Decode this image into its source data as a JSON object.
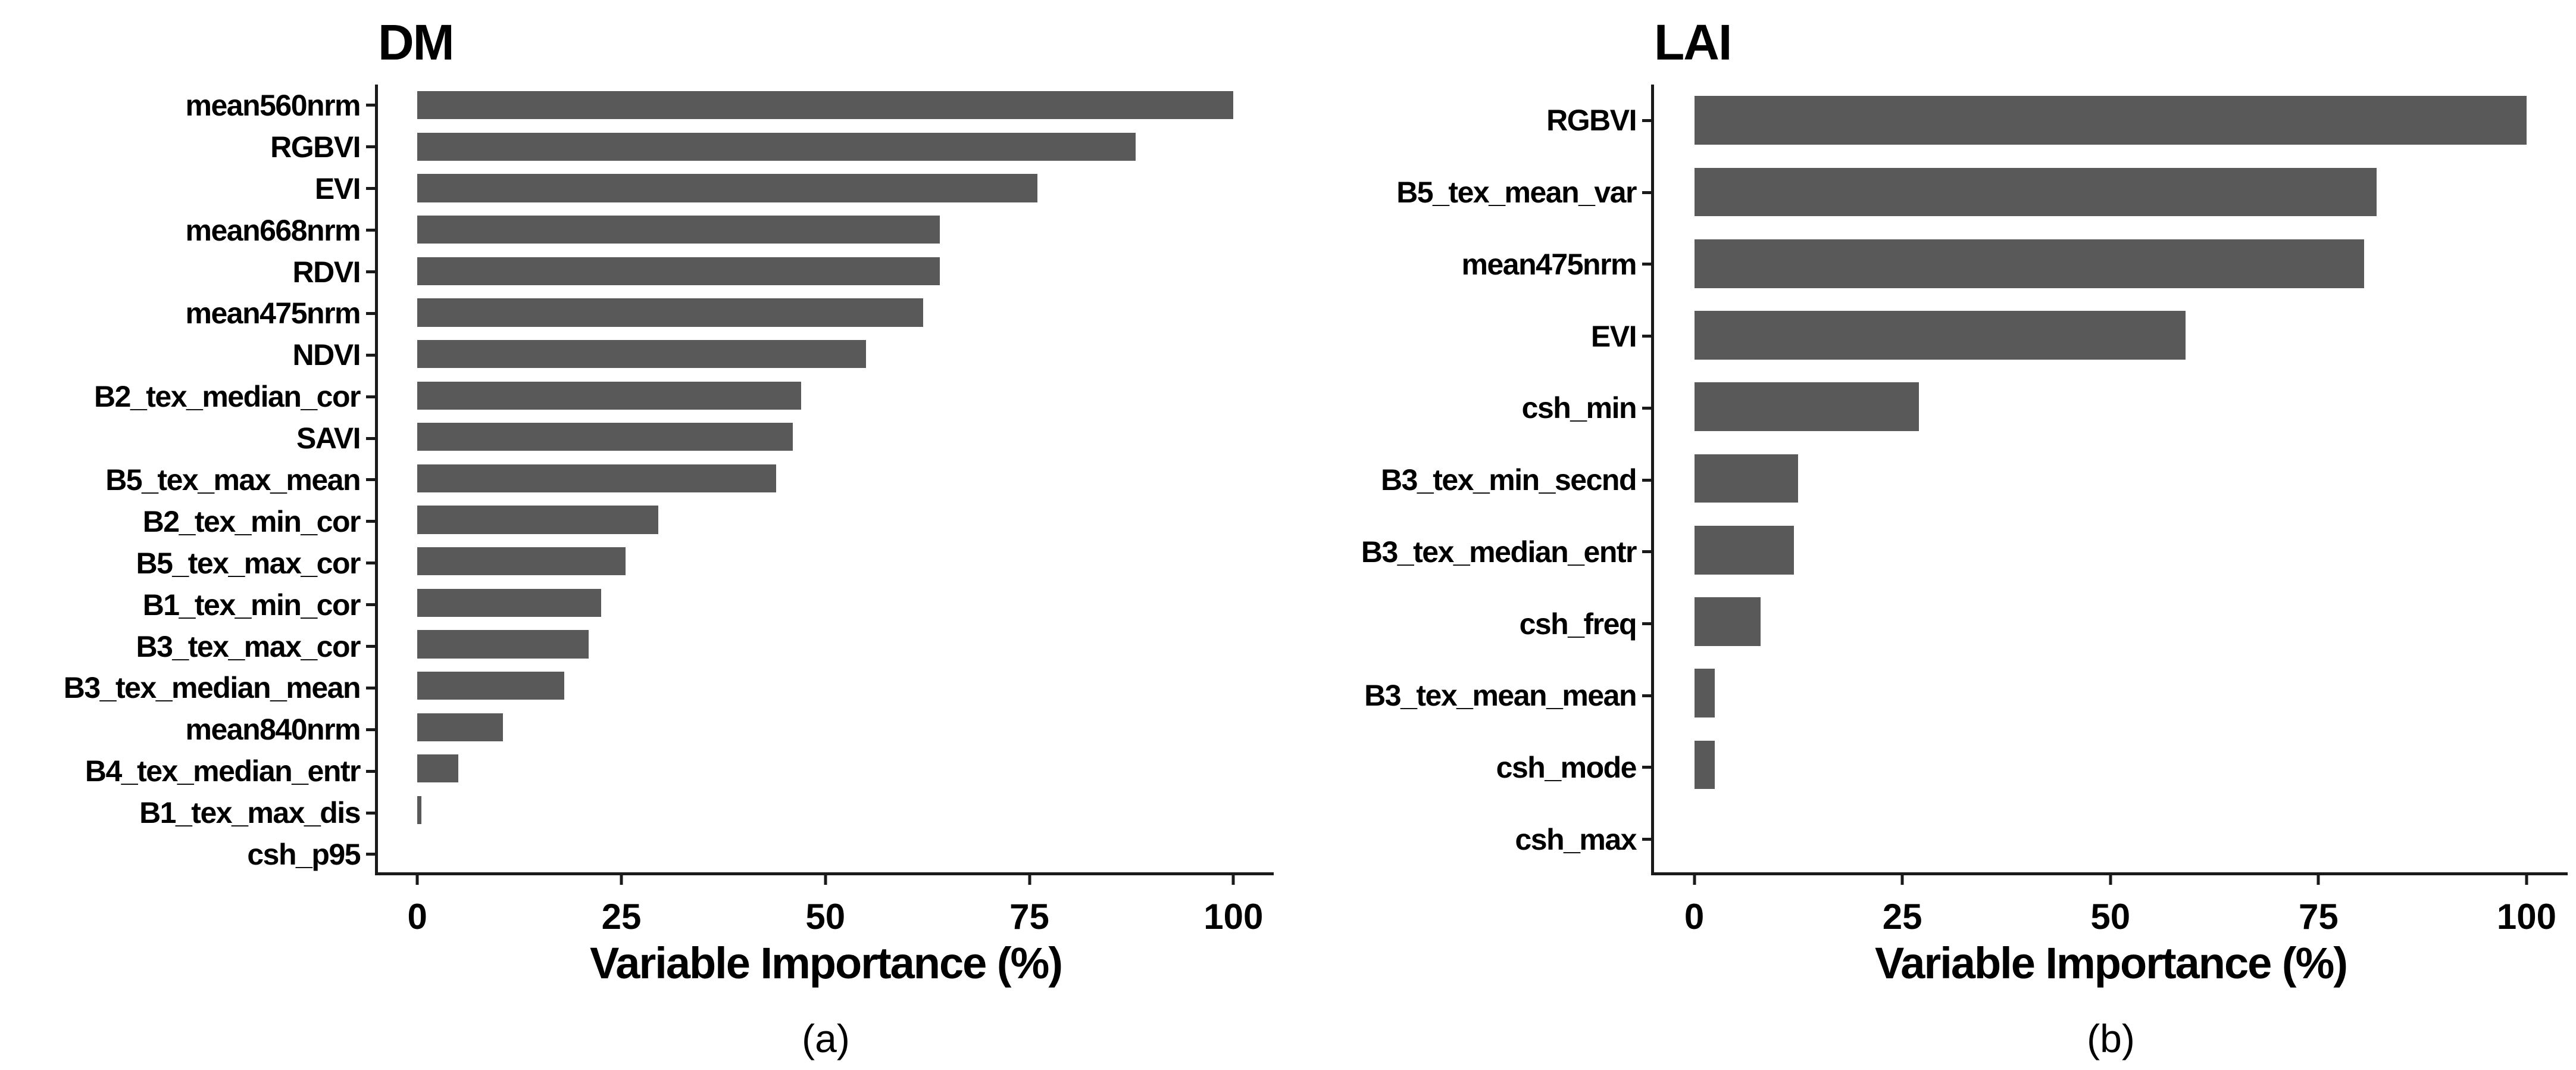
{
  "figure": {
    "background": "#ffffff",
    "bar_color": "#595959",
    "axis_color": "#1a1a1a",
    "text_color": "#000000",
    "axis": {
      "zero_offset_pct": 4.4,
      "pct_per_unit": 0.911
    }
  },
  "chart_data": [
    {
      "type": "bar",
      "orientation": "horizontal",
      "title": "DM",
      "caption": "(a)",
      "xlabel": "Variable Importance (%)",
      "ylabel": "",
      "xlim": [
        0,
        105
      ],
      "xticks": [
        0,
        25,
        50,
        75,
        100
      ],
      "grid": false,
      "legend": false,
      "bar_color": "#595959",
      "categories": [
        "mean560nrm",
        "RGBVI",
        "EVI",
        "mean668nrm",
        "RDVI",
        "mean475nrm",
        "NDVI",
        "B2_tex_median_cor",
        "SAVI",
        "B5_tex_max_mean",
        "B2_tex_min_cor",
        "B5_tex_max_cor",
        "B1_tex_min_cor",
        "B3_tex_max_cor",
        "B3_tex_median_mean",
        "mean840nrm",
        "B4_tex_median_entr",
        "B1_tex_max_dis",
        "csh_p95"
      ],
      "values": [
        100,
        88,
        76,
        64,
        64,
        62,
        55,
        47,
        46,
        44,
        29.5,
        25.5,
        22.5,
        21,
        18,
        10.5,
        5,
        0.5,
        0
      ]
    },
    {
      "type": "bar",
      "orientation": "horizontal",
      "title": "LAI",
      "caption": "(b)",
      "xlabel": "Variable Importance (%)",
      "ylabel": "",
      "xlim": [
        0,
        105
      ],
      "xticks": [
        0,
        25,
        50,
        75,
        100
      ],
      "grid": false,
      "legend": false,
      "bar_color": "#595959",
      "categories": [
        "RGBVI",
        "B5_tex_mean_var",
        "mean475nrm",
        "EVI",
        "csh_min",
        "B3_tex_min_secnd",
        "B3_tex_median_entr",
        "csh_freq",
        "B3_tex_mean_mean",
        "csh_mode",
        "csh_max"
      ],
      "values": [
        100,
        82,
        80.5,
        59,
        27,
        12.5,
        12,
        8,
        2.5,
        2.5,
        0
      ]
    }
  ]
}
